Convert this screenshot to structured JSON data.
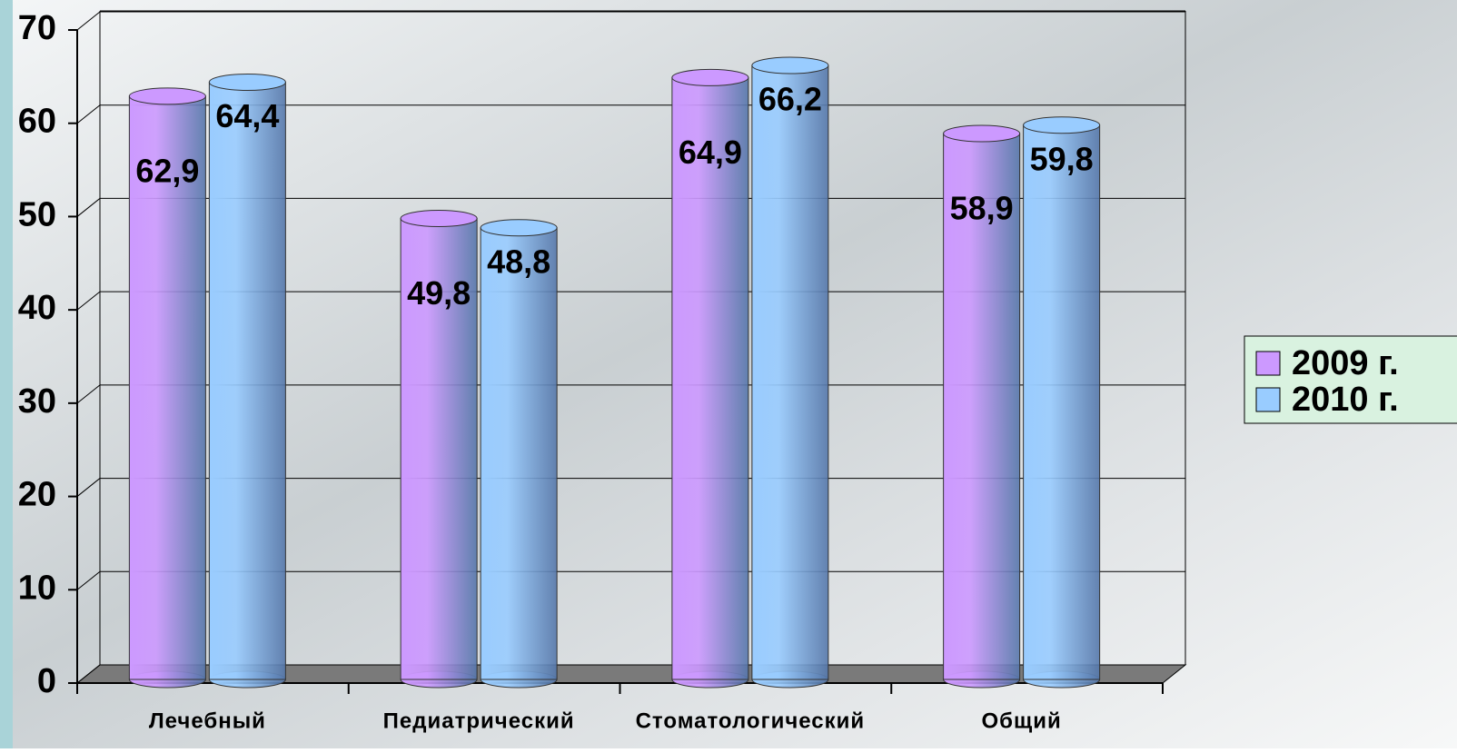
{
  "chart_data": {
    "type": "bar",
    "categories": [
      "Лечебный",
      "Педиатрический",
      "Стоматологический",
      "Общий"
    ],
    "series": [
      {
        "name": "2009 г.",
        "color": "#cc99ff",
        "values": [
          62.9,
          49.8,
          64.9,
          58.9
        ],
        "value_labels": [
          "62,9",
          "49,8",
          "64,9",
          "58,9"
        ]
      },
      {
        "name": "2010 г.",
        "color": "#99ccff",
        "values": [
          64.4,
          48.8,
          66.2,
          59.8
        ],
        "value_labels": [
          "64,4",
          "48,8",
          "66,2",
          "59,8"
        ]
      }
    ],
    "ylim": [
      0,
      70
    ],
    "yticks": [
      0,
      10,
      20,
      30,
      40,
      50,
      60,
      70
    ],
    "grid": true,
    "legend": "right"
  }
}
